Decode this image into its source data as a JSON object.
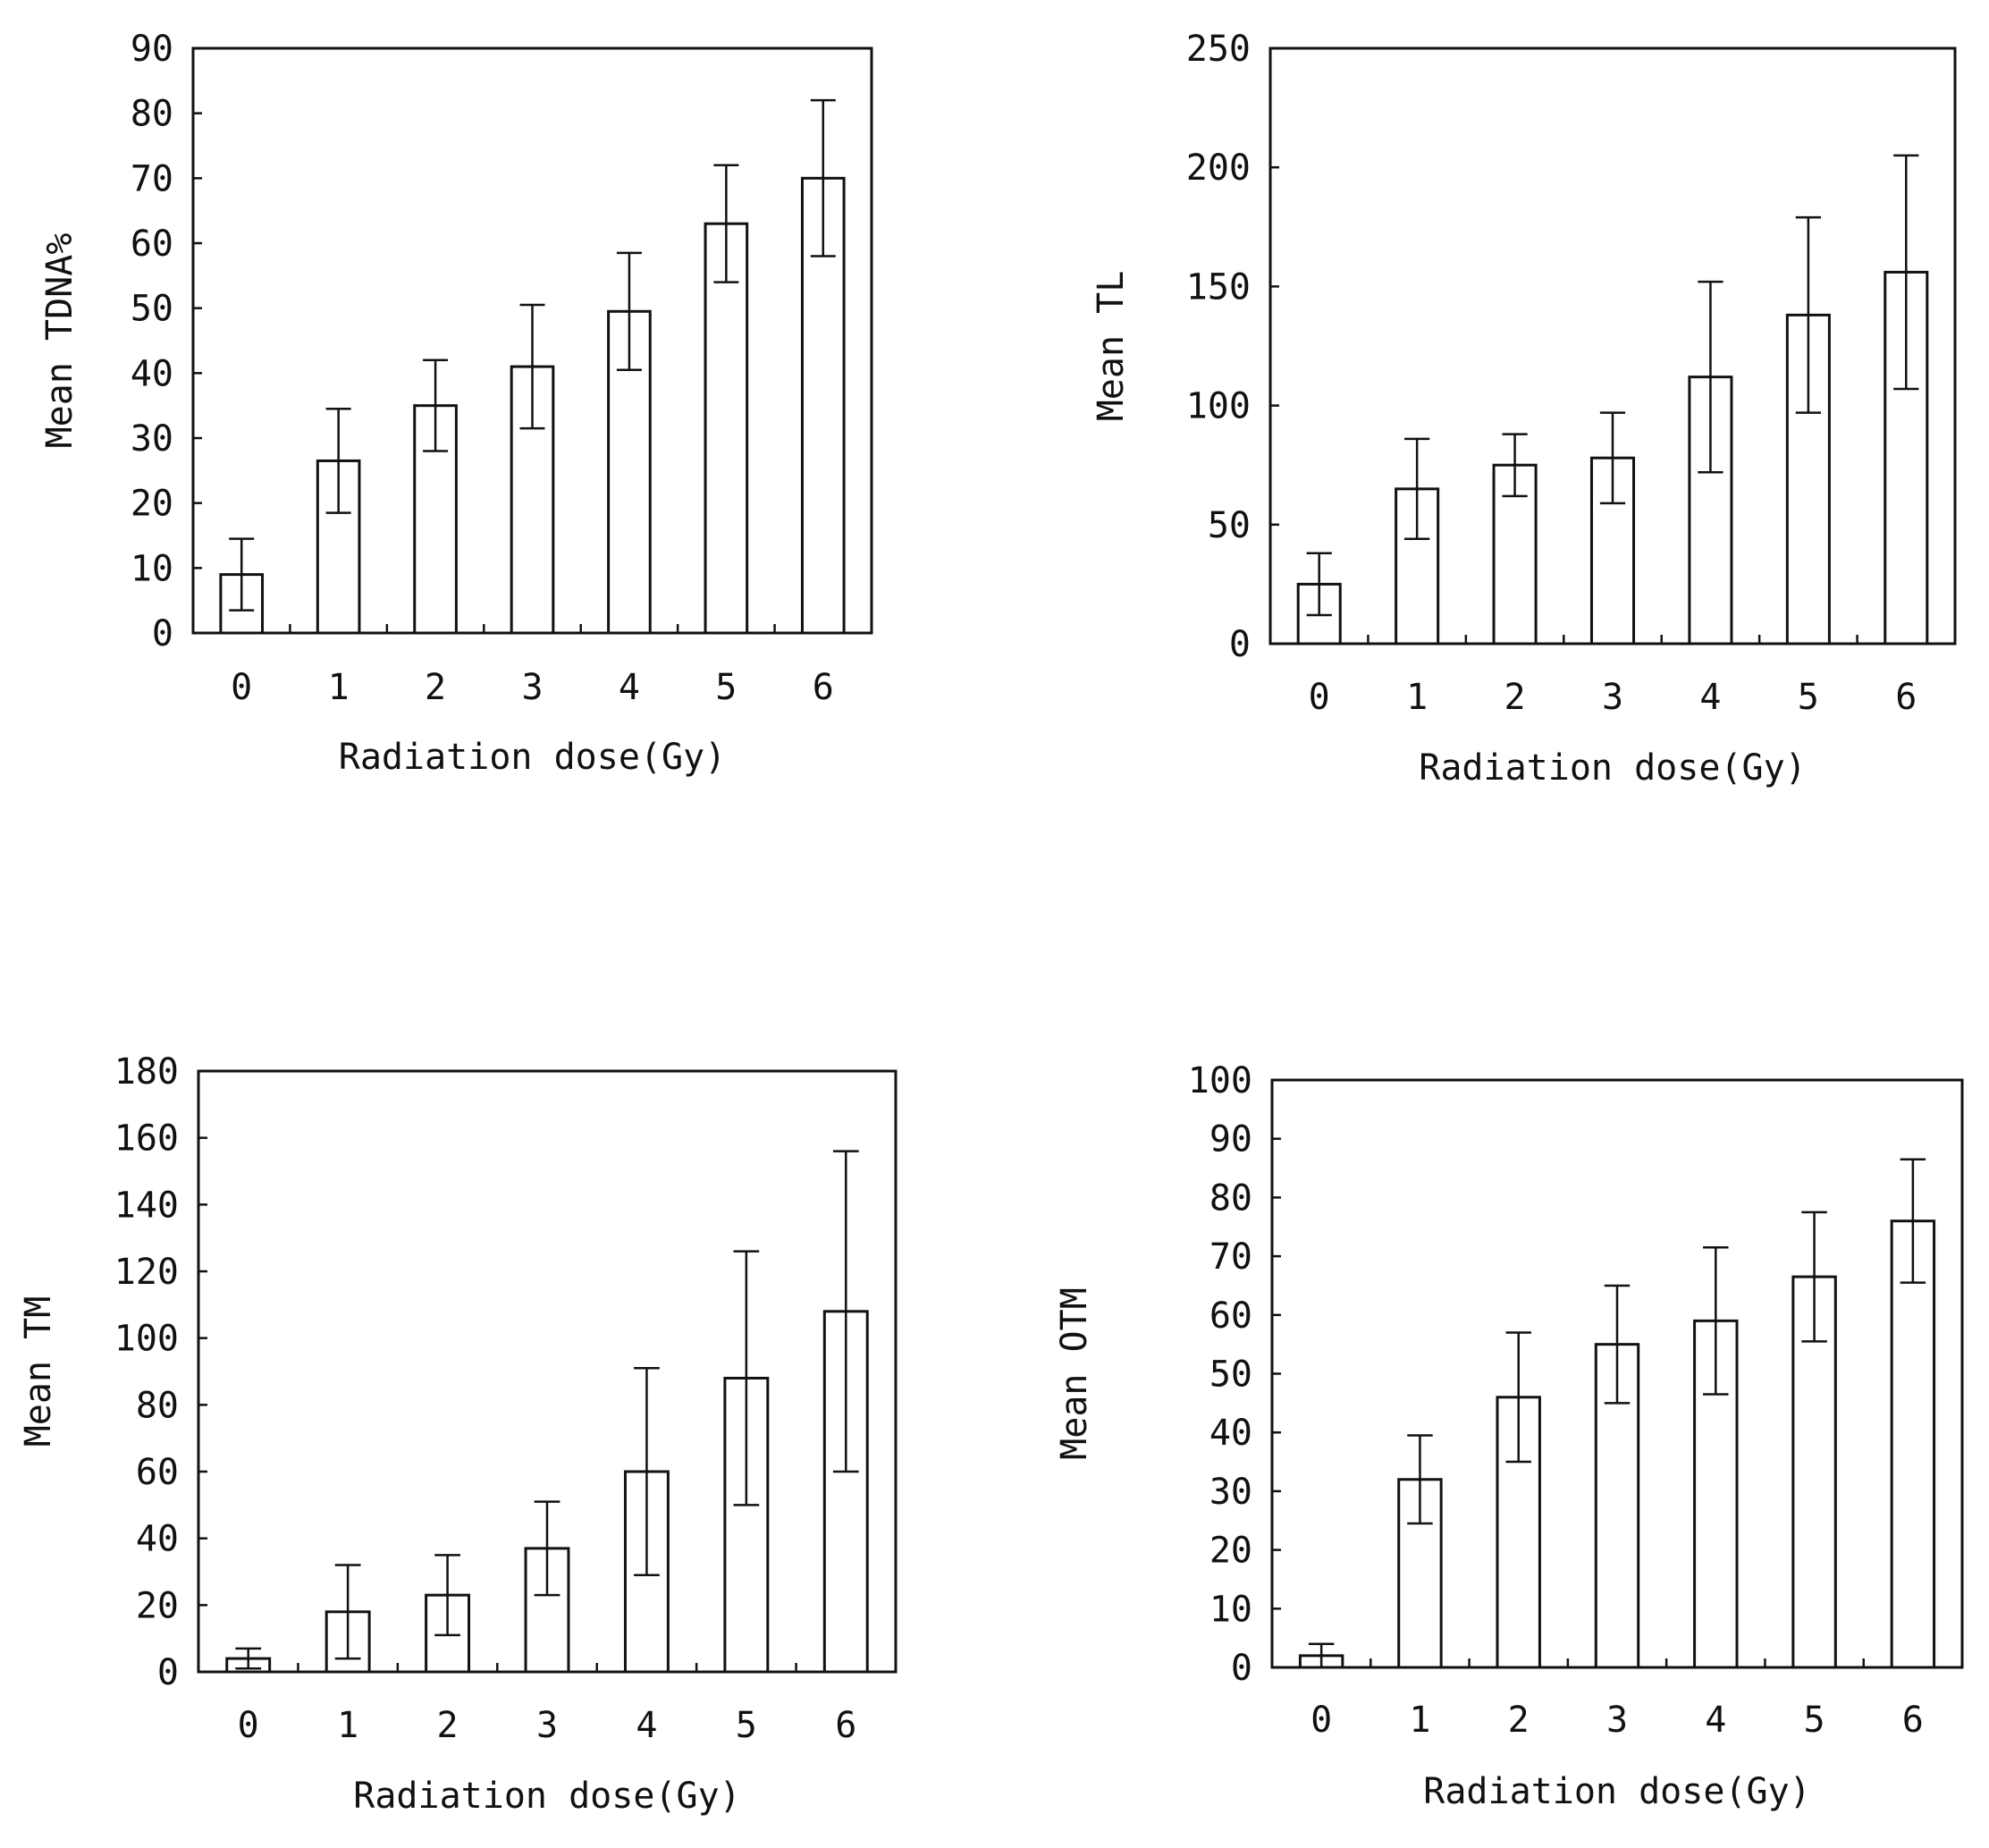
{
  "figure": {
    "background": "#ffffff",
    "ink_color": "#111111",
    "bar_fill": "#ffffff"
  },
  "chart_data": [
    {
      "type": "bar",
      "title": "",
      "xlabel": "Radiation dose(Gy)",
      "ylabel": "Mean TDNA%",
      "categories": [
        "0",
        "1",
        "2",
        "3",
        "4",
        "5",
        "6"
      ],
      "series": [
        {
          "values": [
            9,
            26.5,
            35,
            41,
            49.5,
            63,
            70
          ],
          "error": [
            5.5,
            8,
            7,
            9.5,
            9,
            9,
            12
          ]
        }
      ],
      "ylim": [
        0,
        90
      ],
      "yticks": [
        0,
        10,
        20,
        30,
        40,
        50,
        60,
        70,
        80,
        90
      ],
      "grid": false,
      "error_bars": true
    },
    {
      "type": "bar",
      "title": "",
      "xlabel": "Radiation dose(Gy)",
      "ylabel": "Mean TL",
      "categories": [
        "0",
        "1",
        "2",
        "3",
        "4",
        "5",
        "6"
      ],
      "series": [
        {
          "values": [
            25,
            65,
            75,
            78,
            112,
            138,
            156
          ],
          "error": [
            13,
            21,
            13,
            19,
            40,
            41,
            49
          ]
        }
      ],
      "ylim": [
        0,
        250
      ],
      "yticks": [
        0,
        50,
        100,
        150,
        200,
        250
      ],
      "grid": false,
      "error_bars": true
    },
    {
      "type": "bar",
      "title": "",
      "xlabel": "Radiation dose(Gy)",
      "ylabel": "Mean TM",
      "categories": [
        "0",
        "1",
        "2",
        "3",
        "4",
        "5",
        "6"
      ],
      "series": [
        {
          "values": [
            4,
            18,
            23,
            37,
            60,
            88,
            108
          ],
          "error": [
            3,
            14,
            12,
            14,
            31,
            38,
            48
          ]
        }
      ],
      "ylim": [
        0,
        180
      ],
      "yticks": [
        0,
        20,
        40,
        60,
        80,
        100,
        120,
        140,
        160,
        180
      ],
      "grid": false,
      "error_bars": true
    },
    {
      "type": "bar",
      "title": "",
      "xlabel": "Radiation dose(Gy)",
      "ylabel": "Mean OTM",
      "categories": [
        "0",
        "1",
        "2",
        "3",
        "4",
        "5",
        "6"
      ],
      "series": [
        {
          "values": [
            2,
            32,
            46,
            55,
            59,
            66.5,
            76
          ],
          "error": [
            2,
            7.5,
            11,
            10,
            12.5,
            11,
            10.5
          ]
        }
      ],
      "ylim": [
        0,
        100
      ],
      "yticks": [
        0,
        10,
        20,
        30,
        40,
        50,
        60,
        70,
        80,
        90,
        100
      ],
      "grid": false,
      "error_bars": true
    }
  ]
}
